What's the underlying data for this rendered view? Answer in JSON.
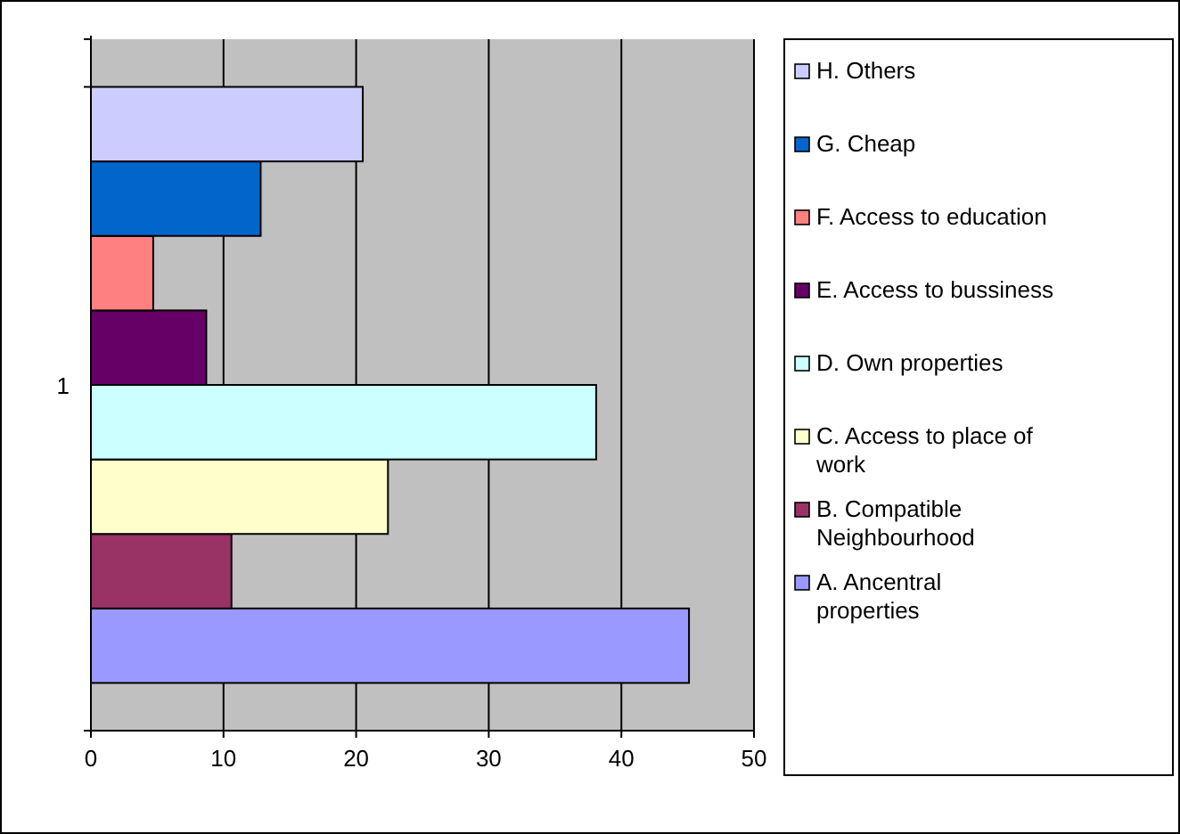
{
  "chart_data": {
    "type": "bar",
    "orientation": "horizontal",
    "categories": [
      "1"
    ],
    "series": [
      {
        "name": "A. Ancentral properties",
        "color": "#9999ff",
        "values": [
          45.1
        ]
      },
      {
        "name": "B. Compatible Neighbourhood",
        "color": "#993366",
        "values": [
          10.6
        ]
      },
      {
        "name": "C. Access to place of work",
        "color": "#ffffcc",
        "values": [
          22.4
        ]
      },
      {
        "name": "D. Own properties",
        "color": "#ccffff",
        "values": [
          38.1
        ]
      },
      {
        "name": "E. Access to bussiness",
        "color": "#660066",
        "values": [
          8.7
        ]
      },
      {
        "name": "F. Access to education",
        "color": "#ff8080",
        "values": [
          4.7
        ]
      },
      {
        "name": "G. Cheap",
        "color": "#0066cc",
        "values": [
          12.8
        ]
      },
      {
        "name": "H. Others",
        "color": "#ccccff",
        "values": [
          20.5
        ]
      }
    ],
    "xlim": [
      0,
      50
    ],
    "xticks": [
      0,
      10,
      20,
      30,
      40,
      50
    ],
    "grid": "x",
    "legend": "right"
  }
}
